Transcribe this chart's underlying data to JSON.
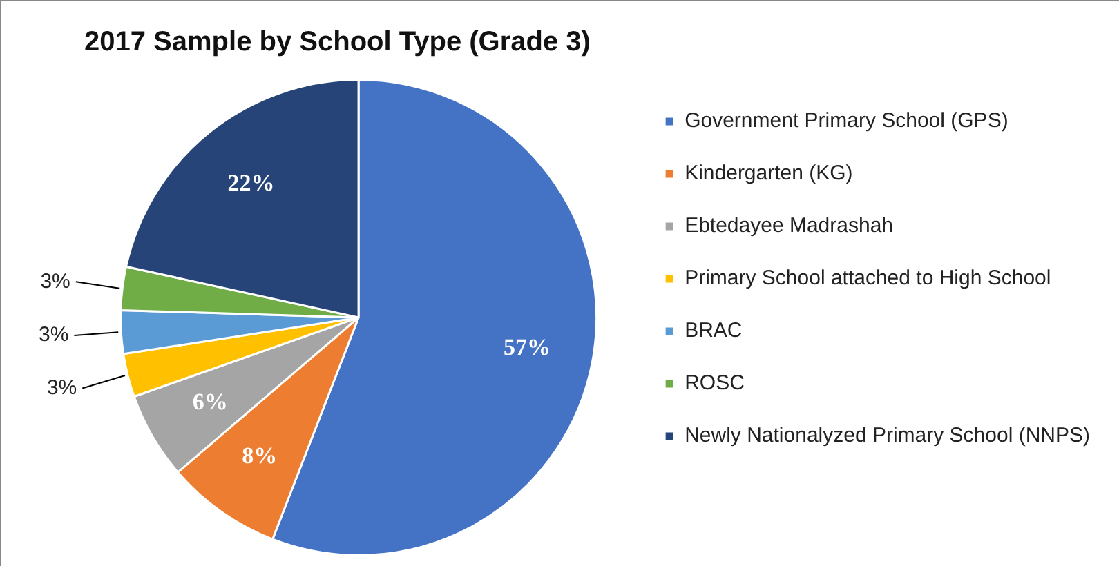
{
  "chart_data": {
    "type": "pie",
    "title": "2017 Sample by School Type (Grade 3)",
    "categories": [
      "Government Primary School (GPS)",
      "Kindergarten (KG)",
      "Ebtedayee Madrashah",
      "Primary School attached to High School",
      "BRAC",
      "ROSC",
      "Newly Nationalyzed Primary School (NNPS)"
    ],
    "values": [
      57,
      8,
      6,
      3,
      3,
      3,
      22
    ],
    "colors": [
      "#4472c4",
      "#ed7d31",
      "#a5a5a5",
      "#ffc000",
      "#5b9bd5",
      "#70ad47",
      "#264478"
    ],
    "value_labels": [
      "57%",
      "8%",
      "6%",
      "3%",
      "3%",
      "3%",
      "22%"
    ],
    "legend": "right"
  }
}
